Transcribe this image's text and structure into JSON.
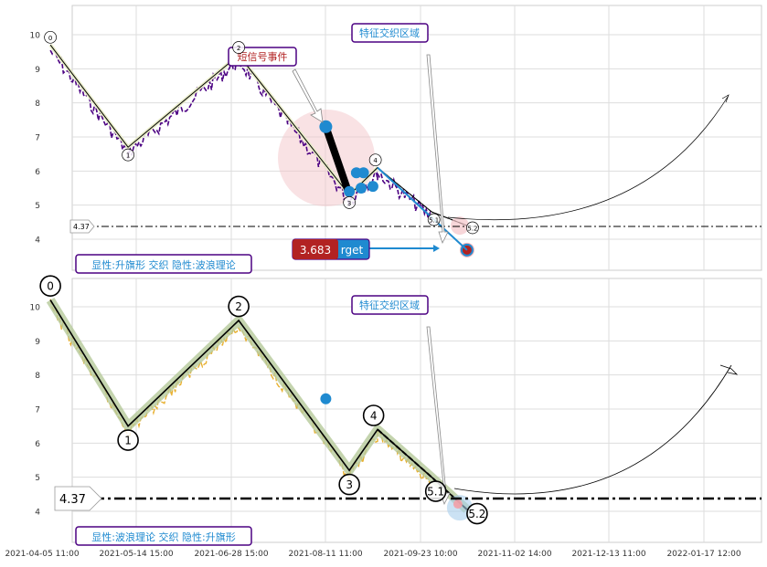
{
  "chart_data": [
    {
      "type": "line",
      "yticks": [
        4,
        5,
        6,
        7,
        8,
        9,
        10
      ],
      "ylim": [
        3.4,
        10.8
      ],
      "grid": true,
      "threshold": {
        "value": 4.37,
        "label": "4.37"
      },
      "wave_points": [
        {
          "label": "0",
          "x": "2021-04-09",
          "y": 9.7
        },
        {
          "label": "1",
          "x": "2021-05-12",
          "y": 6.7
        },
        {
          "label": "2",
          "x": "2021-06-28",
          "y": 9.4
        },
        {
          "label": "3",
          "x": "2021-08-14",
          "y": 5.3
        },
        {
          "label": "4",
          "x": "2021-08-26",
          "y": 6.1
        },
        {
          "label": "5.1",
          "x": "2021-09-18",
          "y": 4.8
        },
        {
          "label": "5.2",
          "x": "2021-10-03",
          "y": 4.4
        }
      ],
      "annotations": {
        "short_signal": "短信号事件",
        "feature_zone": "特征交织区域",
        "target_value": "3.683",
        "target_text": "rget",
        "footer": "显性:升旗形 交织 隐性:波浪理论"
      }
    },
    {
      "type": "line",
      "yticks": [
        4,
        5,
        6,
        7,
        8,
        9,
        10
      ],
      "ylim": [
        3.4,
        10.8
      ],
      "grid": true,
      "threshold": {
        "value": 4.37,
        "label": "4.37"
      },
      "wave_points": [
        {
          "label": "0",
          "x": "2021-04-09",
          "y": 10.2
        },
        {
          "label": "1",
          "x": "2021-05-12",
          "y": 6.5
        },
        {
          "label": "2",
          "x": "2021-06-28",
          "y": 9.6
        },
        {
          "label": "3",
          "x": "2021-08-14",
          "y": 5.2
        },
        {
          "label": "4",
          "x": "2021-08-26",
          "y": 6.4
        },
        {
          "label": "5.1",
          "x": "2021-09-18",
          "y": 5.0
        },
        {
          "label": "5.2",
          "x": "2021-10-03",
          "y": 4.05
        }
      ],
      "annotations": {
        "feature_zone": "特征交织区域",
        "footer": "显性:波浪理论 交织 隐性:升旗形"
      }
    }
  ],
  "xaxis": {
    "ticks": [
      "2021-04-05 11:00",
      "2021-05-14 15:00",
      "2021-06-28 15:00",
      "2021-08-11 11:00",
      "2021-09-23 10:00",
      "2021-11-02 14:00",
      "2021-12-13 11:00",
      "2022-01-17 12:00"
    ]
  },
  "colors": {
    "price_top": "#4b0082",
    "price_bottom": "#e8b030",
    "wave_band": "#b5c99a",
    "marker_blue": "#1f8ad0",
    "label_red": "#b22222",
    "label_blue": "#1f8ad0",
    "box_border": "#4b0082"
  }
}
